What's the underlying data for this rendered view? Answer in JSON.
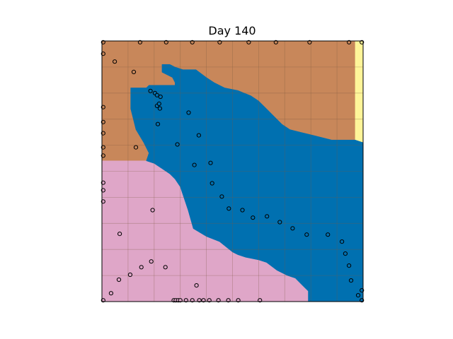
{
  "chart_data": {
    "type": "heatmap",
    "title": "Day 140",
    "xlabel": "",
    "ylabel": "",
    "xlim": [
      0,
      100
    ],
    "ylim": [
      0,
      100
    ],
    "grid": true,
    "colors": {
      "brown": "#c8875a",
      "blue": "#0070b0",
      "pink": "#dfa6c8",
      "yellow": "#fff599",
      "grid": "#7a5a40",
      "marker_edge": "#000000"
    },
    "regions": [
      {
        "color": "brown",
        "boundary": [
          [
            0,
            100
          ],
          [
            97,
            100
          ],
          [
            97,
            62
          ],
          [
            100,
            61
          ],
          [
            100,
            61
          ],
          [
            97,
            62
          ],
          [
            97,
            62
          ],
          [
            88,
            62
          ],
          [
            84,
            63
          ],
          [
            80,
            64
          ],
          [
            76,
            65
          ],
          [
            72,
            66
          ],
          [
            69,
            68
          ],
          [
            66,
            71
          ],
          [
            63,
            74
          ],
          [
            60,
            77
          ],
          [
            57,
            79
          ],
          [
            52,
            81
          ],
          [
            47,
            82
          ],
          [
            43,
            84
          ],
          [
            40,
            86
          ],
          [
            36,
            89
          ],
          [
            31,
            89
          ],
          [
            28,
            90
          ],
          [
            26,
            91
          ],
          [
            23,
            91
          ],
          [
            23,
            88
          ],
          [
            27,
            86
          ],
          [
            28,
            84
          ],
          [
            28,
            83
          ],
          [
            18,
            83
          ],
          [
            17,
            82
          ],
          [
            11,
            82
          ],
          [
            11,
            74
          ],
          [
            13,
            66
          ],
          [
            16,
            61
          ],
          [
            18,
            57
          ],
          [
            17,
            54
          ],
          [
            0,
            54
          ]
        ]
      },
      {
        "color": "yellow",
        "boundary": [
          [
            97,
            100
          ],
          [
            100,
            100
          ],
          [
            100,
            61
          ],
          [
            97,
            62
          ]
        ]
      },
      {
        "color": "pink",
        "boundary": [
          [
            0,
            54
          ],
          [
            17,
            54
          ],
          [
            20,
            53
          ],
          [
            23,
            51
          ],
          [
            26,
            49
          ],
          [
            28,
            47
          ],
          [
            30,
            44
          ],
          [
            31,
            41
          ],
          [
            32,
            38
          ],
          [
            33,
            35
          ],
          [
            35,
            28
          ],
          [
            40,
            25
          ],
          [
            45,
            23
          ],
          [
            50,
            19
          ],
          [
            52,
            18
          ],
          [
            55,
            17
          ],
          [
            60,
            16
          ],
          [
            63,
            15
          ],
          [
            67,
            12
          ],
          [
            71,
            10
          ],
          [
            74,
            9
          ],
          [
            77,
            6
          ],
          [
            79,
            4
          ],
          [
            79,
            0
          ],
          [
            0,
            0
          ]
        ]
      },
      {
        "color": "blue",
        "boundary": [
          [
            11,
            82
          ],
          [
            17,
            82
          ],
          [
            18,
            83
          ],
          [
            28,
            83
          ],
          [
            28,
            84
          ],
          [
            27,
            86
          ],
          [
            23,
            88
          ],
          [
            23,
            91
          ],
          [
            26,
            91
          ],
          [
            28,
            90
          ],
          [
            31,
            89
          ],
          [
            36,
            89
          ],
          [
            40,
            86
          ],
          [
            43,
            84
          ],
          [
            47,
            82
          ],
          [
            52,
            81
          ],
          [
            57,
            79
          ],
          [
            60,
            77
          ],
          [
            63,
            74
          ],
          [
            66,
            71
          ],
          [
            69,
            68
          ],
          [
            72,
            66
          ],
          [
            76,
            65
          ],
          [
            80,
            64
          ],
          [
            84,
            63
          ],
          [
            88,
            62
          ],
          [
            97,
            62
          ],
          [
            100,
            61
          ],
          [
            100,
            0
          ],
          [
            79,
            0
          ],
          [
            79,
            4
          ],
          [
            77,
            6
          ],
          [
            74,
            9
          ],
          [
            71,
            10
          ],
          [
            67,
            12
          ],
          [
            63,
            15
          ],
          [
            60,
            16
          ],
          [
            55,
            17
          ],
          [
            52,
            18
          ],
          [
            50,
            19
          ],
          [
            45,
            23
          ],
          [
            40,
            25
          ],
          [
            35,
            28
          ],
          [
            33,
            35
          ],
          [
            32,
            38
          ],
          [
            31,
            41
          ],
          [
            30,
            44
          ],
          [
            28,
            47
          ],
          [
            26,
            49
          ],
          [
            23,
            51
          ],
          [
            20,
            53
          ],
          [
            17,
            54
          ],
          [
            18,
            57
          ],
          [
            16,
            61
          ],
          [
            13,
            66
          ],
          [
            11,
            74
          ]
        ]
      }
    ],
    "points": [
      [
        0.5,
        99.5
      ],
      [
        14.6,
        99.5
      ],
      [
        24.6,
        99.5
      ],
      [
        34.6,
        99.5
      ],
      [
        45.1,
        99.5
      ],
      [
        56.2,
        99.5
      ],
      [
        66.6,
        99.5
      ],
      [
        79.5,
        99.5
      ],
      [
        94.6,
        99.5
      ],
      [
        99.5,
        99.5
      ],
      [
        0.5,
        95.1
      ],
      [
        4.9,
        92.1
      ],
      [
        12.2,
        88.1
      ],
      [
        18.6,
        80.8
      ],
      [
        20.3,
        80.0
      ],
      [
        21.1,
        79.2
      ],
      [
        22.4,
        78.6
      ],
      [
        21.1,
        75.1
      ],
      [
        22.2,
        74.1
      ],
      [
        21.9,
        75.9
      ],
      [
        0.5,
        74.6
      ],
      [
        33.2,
        72.5
      ],
      [
        21.4,
        68.1
      ],
      [
        0.5,
        68.9
      ],
      [
        0.5,
        64.6
      ],
      [
        37.1,
        63.8
      ],
      [
        13.0,
        59.2
      ],
      [
        28.9,
        60.3
      ],
      [
        0.5,
        59.2
      ],
      [
        0.5,
        56.0
      ],
      [
        35.4,
        52.4
      ],
      [
        41.6,
        53.2
      ],
      [
        0.5,
        45.6
      ],
      [
        42.2,
        45.4
      ],
      [
        45.9,
        40.3
      ],
      [
        0.5,
        42.7
      ],
      [
        48.6,
        35.7
      ],
      [
        0.5,
        38.4
      ],
      [
        53.8,
        35.1
      ],
      [
        19.4,
        35.1
      ],
      [
        57.8,
        32.2
      ],
      [
        63.2,
        32.7
      ],
      [
        68.1,
        30.5
      ],
      [
        6.8,
        26.0
      ],
      [
        73.0,
        28.1
      ],
      [
        78.4,
        25.7
      ],
      [
        86.5,
        25.7
      ],
      [
        91.9,
        23.0
      ],
      [
        93.2,
        18.4
      ],
      [
        94.6,
        13.8
      ],
      [
        18.9,
        15.4
      ],
      [
        15.1,
        13.2
      ],
      [
        24.3,
        13.2
      ],
      [
        95.4,
        8.1
      ],
      [
        6.5,
        8.4
      ],
      [
        10.8,
        10.3
      ],
      [
        98.1,
        2.4
      ],
      [
        99.5,
        4.3
      ],
      [
        36.2,
        6.2
      ],
      [
        0.5,
        0.5
      ],
      [
        3.5,
        3.2
      ],
      [
        27.5,
        0.5
      ],
      [
        28.3,
        0.5
      ],
      [
        29.2,
        0.5
      ],
      [
        30.0,
        0.5
      ],
      [
        32.2,
        0.5
      ],
      [
        34.6,
        0.5
      ],
      [
        37.3,
        0.5
      ],
      [
        38.9,
        0.5
      ],
      [
        41.1,
        0.5
      ],
      [
        44.6,
        0.5
      ],
      [
        48.4,
        0.5
      ],
      [
        52.2,
        0.5
      ],
      [
        60.5,
        0.5
      ],
      [
        99.5,
        0.5
      ]
    ]
  }
}
